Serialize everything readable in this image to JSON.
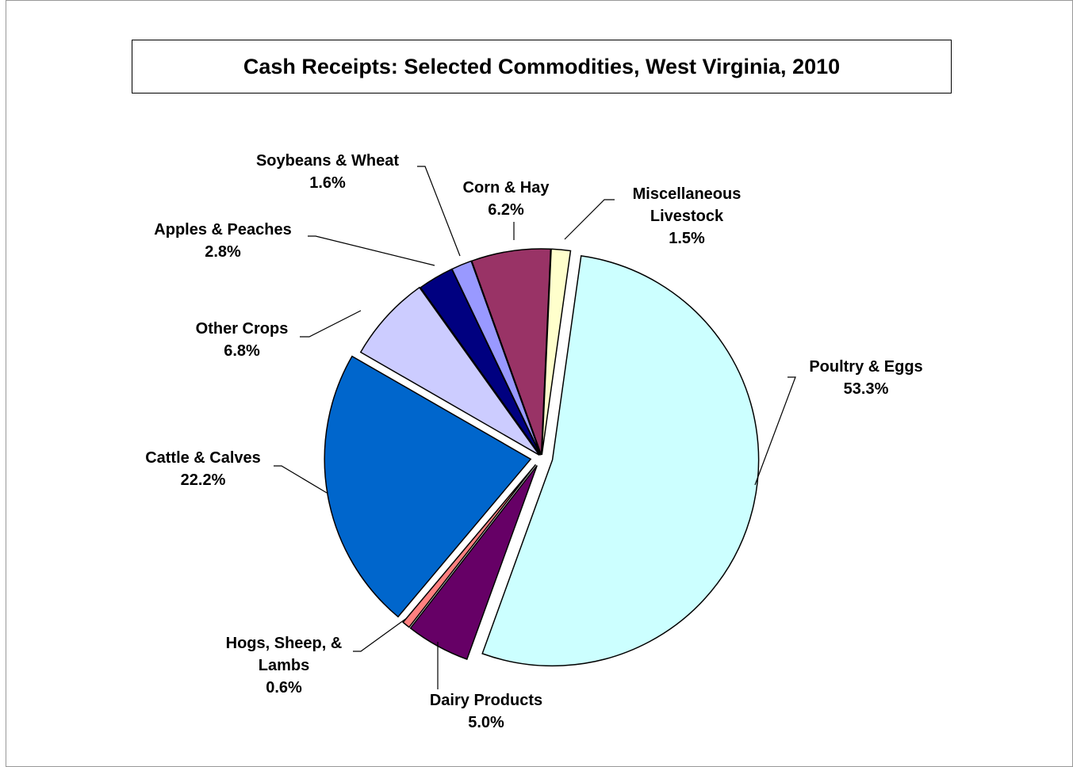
{
  "chart_data": {
    "type": "pie",
    "title": "Cash Receipts: Selected Commodities, West Virginia, 2010",
    "categories": [
      "Poultry & Eggs",
      "Dairy Products",
      "Hogs, Sheep, & Lambs",
      "Cattle & Calves",
      "Other Crops",
      "Apples & Peaches",
      "Soybeans & Wheat",
      "Corn & Hay",
      "Miscellaneous Livestock"
    ],
    "values": [
      53.3,
      5.0,
      0.6,
      22.2,
      6.8,
      2.8,
      1.6,
      6.2,
      1.5
    ],
    "value_labels": [
      "53.3%",
      "5.0%",
      "0.6%",
      "22.2%",
      "6.8%",
      "2.8%",
      "1.6%",
      "6.2%",
      "1.5%"
    ],
    "colors": [
      "#ccffff",
      "#660066",
      "#ff8080",
      "#0066cc",
      "#ccccff",
      "#000080",
      "#9999ff",
      "#993366",
      "#ffffcc"
    ]
  }
}
